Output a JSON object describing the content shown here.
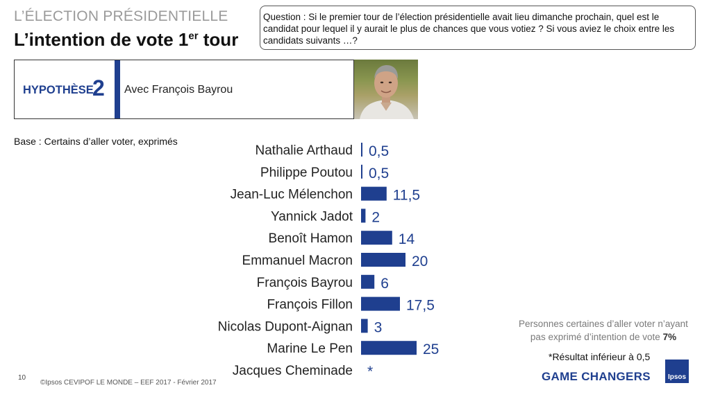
{
  "header": {
    "supertitle": "L’ÉLECTION PRÉSIDENTIELLE",
    "title": "L’intention de vote 1",
    "title_sup": "er",
    "title_end": " tour"
  },
  "question": "Question : Si le premier tour de l’élection présidentielle avait lieu dimanche prochain, quel est le candidat pour lequel il y aurait le plus de chances que vous votiez ?  Si vous aviez le choix entre les candidats suivants …?",
  "hypothesis": {
    "word": "HYPOTHÈSE",
    "number": "2",
    "text": "Avec François Bayrou"
  },
  "base": "Base : Certains d’aller voter, exprimés",
  "chart_data": {
    "type": "bar",
    "orientation": "horizontal",
    "categories": [
      "Nathalie Arthaud",
      "Philippe Poutou",
      "Jean-Luc Mélenchon",
      "Yannick Jadot",
      "Benoît Hamon",
      "Emmanuel Macron",
      "François Bayrou",
      "François Fillon",
      "Nicolas Dupont-Aignan",
      "Marine Le Pen",
      "Jacques Cheminade"
    ],
    "values": [
      0.5,
      0.5,
      11.5,
      2,
      14,
      20,
      6,
      17.5,
      3,
      25,
      0
    ],
    "labels": [
      "0,5",
      "0,5",
      "11,5",
      "2",
      "14",
      "20",
      "6",
      "17,5",
      "3",
      "25",
      "*"
    ],
    "color": "#1f3f8f",
    "title": "",
    "xlabel": "",
    "ylabel": ""
  },
  "notes": {
    "no_vote_text": "Personnes certaines d’aller voter n’ayant pas exprimé d’intention de vote",
    "no_vote_value": "7%",
    "footnote": "*Résultat inférieur à 0,5"
  },
  "footer": {
    "page": "10",
    "copyright": "©Ipsos  CEVIPOF LE MONDE – EEF 2017 - Février 2017",
    "tagline": "GAME CHANGERS",
    "logo": "Ipsos"
  }
}
